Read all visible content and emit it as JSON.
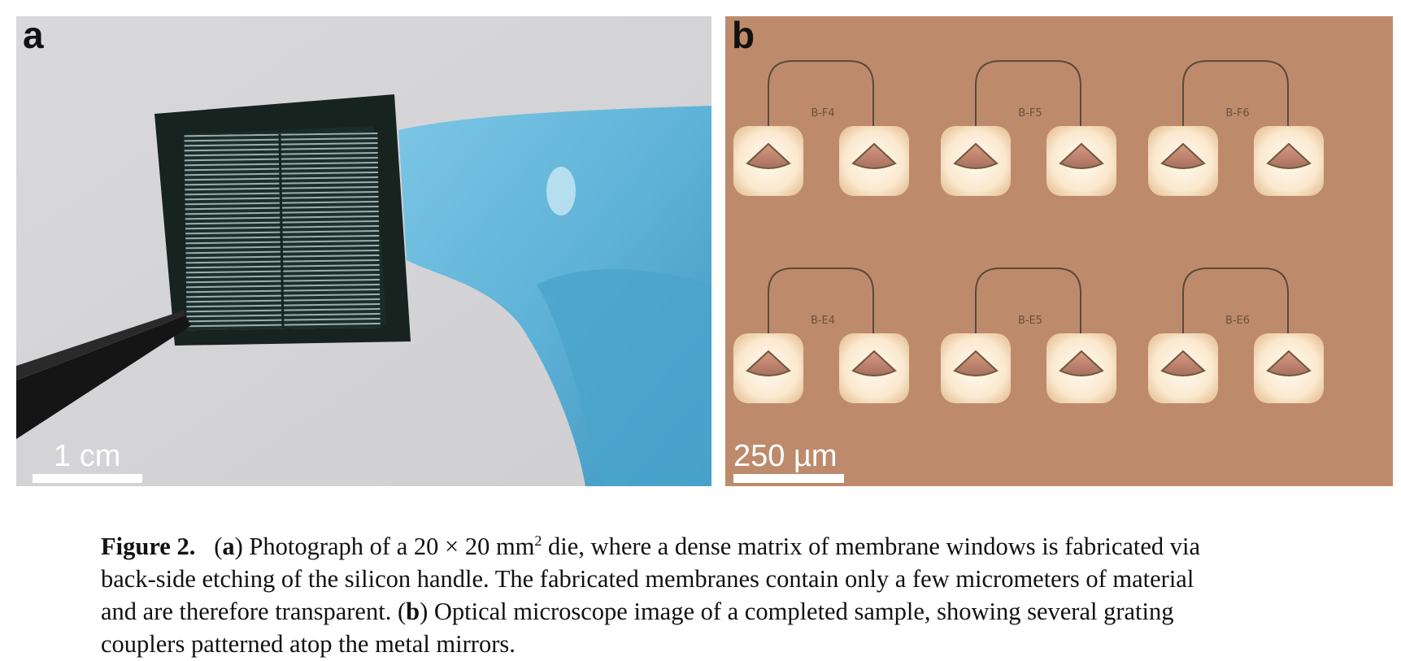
{
  "panel_a": {
    "letter": "a",
    "scale_label": "1 cm"
  },
  "panel_b": {
    "letter": "b",
    "scale_label": "250 µm",
    "device_labels": [
      "B-F4",
      "B-F5",
      "B-F6",
      "B-E4",
      "B-E5",
      "B-E6"
    ]
  },
  "caption": {
    "figure_label": "Figure 2.",
    "part_a_open": "(",
    "part_a_letter": "a",
    "line1_rest": ") Photograph of a 20 × 20 mm",
    "superscript": "2",
    "line1_tail": " die, where a dense matrix of membrane windows is fabricated via",
    "line2": "back-side etching of the silicon handle. The fabricated membranes contain only a few micrometers of material",
    "line3_pre": "and are therefore transparent. (",
    "part_b_letter": "b",
    "line3_post": ") Optical microscope image of a completed sample, showing several grating",
    "line4": "couplers patterned atop the metal mirrors."
  }
}
